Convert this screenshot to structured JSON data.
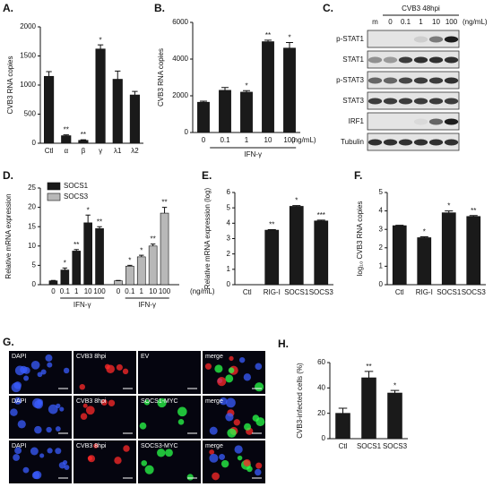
{
  "chart_data": [
    {
      "type": "bar",
      "panel": "A.",
      "ylabel": "CVB3 RNA copies",
      "color": "#1a1a1a",
      "categories": [
        "Ctl",
        "α",
        "β",
        "γ",
        "λ1",
        "λ2"
      ],
      "values": [
        1150,
        130,
        50,
        1620,
        1100,
        830
      ],
      "errors": [
        80,
        15,
        10,
        70,
        140,
        60
      ],
      "significance": [
        null,
        "**",
        "**",
        "*",
        null,
        null
      ],
      "ylim": [
        0,
        2000
      ],
      "yticks": [
        0,
        500,
        1000,
        1500,
        2000
      ]
    },
    {
      "type": "bar",
      "panel": "B.",
      "ylabel": "CVB3 RNA copies",
      "color": "#1a1a1a",
      "categories": [
        "0",
        "0.1",
        "1",
        "10",
        "100"
      ],
      "values": [
        1650,
        2300,
        2200,
        4950,
        4600
      ],
      "errors": [
        60,
        150,
        80,
        80,
        300
      ],
      "significance": [
        null,
        null,
        "*",
        "**",
        "*"
      ],
      "group_label": "IFN-γ",
      "unit_label": "(ng/mL)",
      "ylim": [
        0,
        6000
      ],
      "yticks": [
        0,
        2000,
        4000,
        6000
      ]
    },
    {
      "type": "grouped-bar",
      "panel": "D.",
      "ylabel": "Relative mRNA expression",
      "categories": [
        "0",
        "0.1",
        "1",
        "10",
        "100"
      ],
      "group_label": "IFN-γ",
      "unit_label": "(ng/mL)",
      "series": [
        {
          "name": "SOCS1",
          "color": "#1a1a1a",
          "values": [
            1,
            3.8,
            8.7,
            16,
            14.5
          ],
          "errors": [
            0.1,
            0.5,
            0.4,
            2,
            0.5
          ],
          "significance": [
            null,
            "*",
            "**",
            "*",
            "**"
          ]
        },
        {
          "name": "SOCS3",
          "color": "#b8b8b8",
          "values": [
            1,
            4.8,
            7.2,
            10,
            18.5
          ],
          "errors": [
            0.1,
            0.2,
            0.4,
            0.5,
            1.5
          ],
          "significance": [
            null,
            "*",
            "*",
            "**",
            "**"
          ]
        }
      ],
      "ylim": [
        0,
        25
      ],
      "yticks": [
        0,
        5,
        10,
        15,
        20,
        25
      ]
    },
    {
      "type": "bar",
      "panel": "E.",
      "ylabel": "Relative mRNA expression (log)",
      "color": "#1a1a1a",
      "categories": [
        "Ctl",
        "RIG-I",
        "SOCS1",
        "SOCS3"
      ],
      "values": [
        0,
        3.55,
        5.1,
        4.15
      ],
      "errors": [
        0,
        0.03,
        0.05,
        0.05
      ],
      "significance": [
        null,
        "**",
        "*",
        "***"
      ],
      "ylim": [
        0,
        6
      ],
      "yticks": [
        0,
        1,
        2,
        3,
        4,
        5,
        6
      ]
    },
    {
      "type": "bar",
      "panel": "F.",
      "ylabel": "log₁₀ CVB3 RNA copies",
      "color": "#1a1a1a",
      "categories": [
        "Ctl",
        "RIG-I",
        "SOCS1",
        "SOCS3"
      ],
      "values": [
        3.2,
        2.55,
        3.9,
        3.7
      ],
      "errors": [
        0.02,
        0.05,
        0.1,
        0.05
      ],
      "significance": [
        null,
        "*",
        "*",
        "**"
      ],
      "ylim": [
        0,
        5
      ],
      "yticks": [
        0,
        1,
        2,
        3,
        4,
        5
      ]
    },
    {
      "type": "bar",
      "panel": "H.",
      "ylabel": "CVB3-infected cells (%)",
      "color": "#1a1a1a",
      "categories": [
        "Ctl",
        "SOCS1",
        "SOCS3"
      ],
      "values": [
        20,
        48,
        36
      ],
      "errors": [
        4,
        5,
        2
      ],
      "significance": [
        null,
        "**",
        "*"
      ],
      "ylim": [
        0,
        60
      ],
      "yticks": [
        0,
        20,
        40,
        60
      ]
    }
  ],
  "blot": {
    "panel": "C.",
    "header": "CVB3 48hpi",
    "unit_label": "(ng/mL)",
    "lanes": [
      "m",
      "0",
      "0.1",
      "1",
      "10",
      "100"
    ],
    "rows": [
      "p-STAT1",
      "STAT1",
      "p-STAT3",
      "STAT3",
      "IRF1",
      "Tubulin"
    ]
  },
  "microscopy": {
    "panel": "G.",
    "rows": [
      [
        "DAPI",
        "CVB3 8hpi",
        "EV",
        "merge"
      ],
      [
        "DAPI",
        "CVB3 8hpi",
        "SOCS1-MYC",
        "merge"
      ],
      [
        "DAPI",
        "CVB3 8hpi",
        "SOCS3-MYC",
        "merge"
      ]
    ]
  }
}
